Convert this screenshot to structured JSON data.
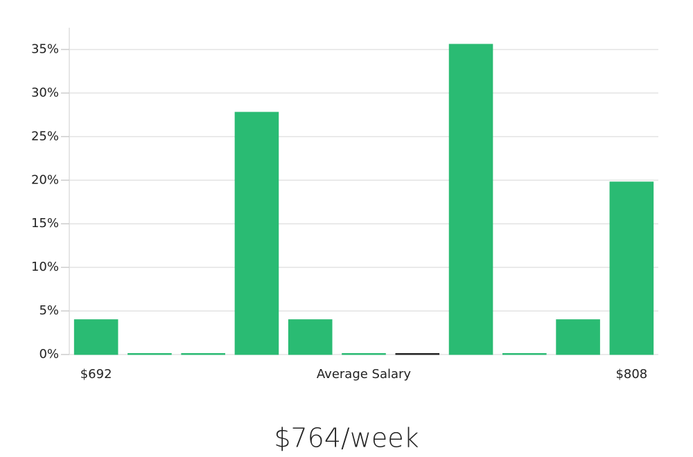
{
  "chart_data": {
    "type": "bar",
    "categories": [
      "$692",
      null,
      null,
      null,
      null,
      null,
      null,
      null,
      null,
      null,
      "$808"
    ],
    "values": [
      4,
      0,
      0,
      27.8,
      4,
      0,
      0,
      35.6,
      0,
      4,
      19.8
    ],
    "colors": [
      "#2abb73",
      "#2abb73",
      "#2abb73",
      "#2abb73",
      "#2abb73",
      "#2abb73",
      "#222222",
      "#2abb73",
      "#2abb73",
      "#2abb73",
      "#2abb73"
    ],
    "xlabel": "Average Salary",
    "ylim": [
      0,
      37.5
    ],
    "yticks": [
      {
        "value": 0,
        "label": "0%"
      },
      {
        "value": 5,
        "label": "5%"
      },
      {
        "value": 10,
        "label": "10%"
      },
      {
        "value": 15,
        "label": "15%"
      },
      {
        "value": 20,
        "label": "20%"
      },
      {
        "value": 25,
        "label": "25%"
      },
      {
        "value": 30,
        "label": "30%"
      },
      {
        "value": 35,
        "label": "35%"
      }
    ],
    "grid": true,
    "footer": "$764/week"
  }
}
